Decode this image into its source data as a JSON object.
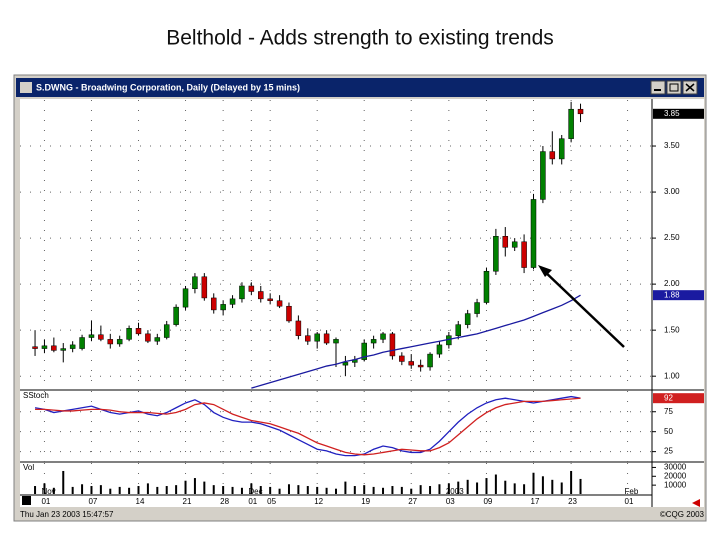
{
  "title": "Belthold - Adds strength to existing trends",
  "window_title": "S.DWNG - Broadwing Corporation, Daily (Delayed by 15 mins)",
  "status": {
    "timestamp": "Thu Jan 23 2003 15:47:57",
    "copyright": "©CQG 2003"
  },
  "chart_data": [
    {
      "type": "candlestick",
      "xlim": [
        -1.6,
        65.6
      ],
      "ylim": [
        0.85,
        4.0
      ],
      "yticks": [
        {
          "value": 1,
          "label": "1.00"
        },
        {
          "value": 1.5,
          "label": "1.50"
        },
        {
          "value": 2,
          "label": "2.00"
        },
        {
          "value": 2.5,
          "label": "2.50"
        },
        {
          "value": 3,
          "label": "3.00"
        },
        {
          "value": 3.5,
          "label": "3.50"
        }
      ],
      "xticks": [
        {
          "value": 1,
          "label": "01"
        },
        {
          "value": 6,
          "label": "07"
        },
        {
          "value": 11,
          "label": "14"
        },
        {
          "value": 16,
          "label": "21"
        },
        {
          "value": 20,
          "label": "28"
        },
        {
          "value": 23,
          "label": "01"
        },
        {
          "value": 25,
          "label": "05"
        },
        {
          "value": 30,
          "label": "12"
        },
        {
          "value": 35,
          "label": "19"
        },
        {
          "value": 40,
          "label": "27"
        },
        {
          "value": 44,
          "label": "03"
        },
        {
          "value": 48,
          "label": "09"
        },
        {
          "value": 53,
          "label": "17"
        },
        {
          "value": 57,
          "label": "23"
        },
        {
          "value": 63,
          "label": "01"
        }
      ],
      "month_ticks": [
        {
          "value": 1,
          "label": "Nov"
        },
        {
          "value": 23,
          "label": "Dec"
        },
        {
          "value": 44,
          "label": "2003"
        },
        {
          "value": 63,
          "label": "Feb"
        }
      ],
      "grid": true,
      "up_color": "#008000",
      "down_color": "#cc0000",
      "candles": [
        [
          1.32,
          1.5,
          1.22,
          1.3
        ],
        [
          1.3,
          1.4,
          1.25,
          1.33
        ],
        [
          1.33,
          1.42,
          1.26,
          1.28
        ],
        [
          1.28,
          1.36,
          1.15,
          1.3
        ],
        [
          1.3,
          1.38,
          1.26,
          1.34
        ],
        [
          1.3,
          1.45,
          1.28,
          1.42
        ],
        [
          1.42,
          1.6,
          1.38,
          1.45
        ],
        [
          1.45,
          1.55,
          1.38,
          1.4
        ],
        [
          1.4,
          1.46,
          1.3,
          1.35
        ],
        [
          1.35,
          1.44,
          1.32,
          1.4
        ],
        [
          1.4,
          1.55,
          1.38,
          1.52
        ],
        [
          1.52,
          1.58,
          1.44,
          1.46
        ],
        [
          1.46,
          1.5,
          1.36,
          1.38
        ],
        [
          1.38,
          1.46,
          1.34,
          1.42
        ],
        [
          1.42,
          1.6,
          1.4,
          1.56
        ],
        [
          1.56,
          1.78,
          1.54,
          1.75
        ],
        [
          1.75,
          1.98,
          1.72,
          1.95
        ],
        [
          1.95,
          2.12,
          1.9,
          2.08
        ],
        [
          2.08,
          2.12,
          1.82,
          1.85
        ],
        [
          1.85,
          1.9,
          1.68,
          1.72
        ],
        [
          1.72,
          1.82,
          1.66,
          1.78
        ],
        [
          1.78,
          1.88,
          1.74,
          1.84
        ],
        [
          1.84,
          2.02,
          1.8,
          1.98
        ],
        [
          1.98,
          2.02,
          1.88,
          1.92
        ],
        [
          1.92,
          1.98,
          1.8,
          1.84
        ],
        [
          1.84,
          1.9,
          1.78,
          1.82
        ],
        [
          1.82,
          1.88,
          1.74,
          1.76
        ],
        [
          1.76,
          1.8,
          1.58,
          1.6
        ],
        [
          1.6,
          1.66,
          1.4,
          1.44
        ],
        [
          1.44,
          1.52,
          1.34,
          1.38
        ],
        [
          1.38,
          1.48,
          1.3,
          1.46
        ],
        [
          1.46,
          1.5,
          1.34,
          1.36
        ],
        [
          1.36,
          1.42,
          1.1,
          1.4
        ],
        [
          1.12,
          1.22,
          1.0,
          1.15
        ],
        [
          1.15,
          1.22,
          1.1,
          1.18
        ],
        [
          1.18,
          1.4,
          1.16,
          1.36
        ],
        [
          1.36,
          1.44,
          1.3,
          1.4
        ],
        [
          1.4,
          1.48,
          1.36,
          1.46
        ],
        [
          1.46,
          1.48,
          1.18,
          1.22
        ],
        [
          1.22,
          1.26,
          1.12,
          1.16
        ],
        [
          1.16,
          1.24,
          1.08,
          1.12
        ],
        [
          1.12,
          1.18,
          1.05,
          1.1
        ],
        [
          1.1,
          1.26,
          1.06,
          1.24
        ],
        [
          1.24,
          1.38,
          1.2,
          1.34
        ],
        [
          1.34,
          1.48,
          1.3,
          1.44
        ],
        [
          1.44,
          1.6,
          1.4,
          1.56
        ],
        [
          1.56,
          1.72,
          1.52,
          1.68
        ],
        [
          1.68,
          1.84,
          1.64,
          1.8
        ],
        [
          1.8,
          2.18,
          1.78,
          2.14
        ],
        [
          2.14,
          2.6,
          2.1,
          2.52
        ],
        [
          2.52,
          2.62,
          2.3,
          2.4
        ],
        [
          2.4,
          2.5,
          2.36,
          2.46
        ],
        [
          2.46,
          2.54,
          2.12,
          2.18
        ],
        [
          2.18,
          2.98,
          2.16,
          2.92
        ],
        [
          2.92,
          3.5,
          2.88,
          3.44
        ],
        [
          3.44,
          3.66,
          3.3,
          3.36
        ],
        [
          3.36,
          3.62,
          3.3,
          3.58
        ],
        [
          3.58,
          3.98,
          3.54,
          3.9
        ],
        [
          3.9,
          3.96,
          3.76,
          3.85
        ]
      ],
      "moving_average": {
        "color": "#1a1aa0",
        "values": [
          null,
          null,
          null,
          null,
          null,
          null,
          null,
          null,
          null,
          null,
          null,
          null,
          null,
          null,
          null,
          null,
          null,
          null,
          null,
          null,
          null,
          null,
          null,
          0.87,
          0.9,
          0.93,
          0.96,
          0.99,
          1.02,
          1.05,
          1.08,
          1.11,
          1.13,
          1.16,
          1.18,
          1.21,
          1.23,
          1.26,
          1.28,
          1.3,
          1.32,
          1.34,
          1.36,
          1.38,
          1.4,
          1.42,
          1.44,
          1.46,
          1.49,
          1.52,
          1.55,
          1.58,
          1.61,
          1.65,
          1.69,
          1.73,
          1.77,
          1.82,
          1.88
        ]
      }
    },
    {
      "type": "line",
      "label": "SStoch",
      "xlim": [
        -1.6,
        65.6
      ],
      "ylim": [
        12,
        101
      ],
      "yticks": [
        25,
        50,
        75
      ],
      "grid": true,
      "series": [
        {
          "color": "#2020c0",
          "values": [
            80,
            78,
            74,
            76,
            78,
            80,
            82,
            78,
            74,
            72,
            74,
            76,
            72,
            70,
            74,
            80,
            86,
            90,
            84,
            74,
            68,
            64,
            62,
            62,
            60,
            56,
            52,
            46,
            40,
            34,
            28,
            26,
            22,
            20,
            20,
            22,
            28,
            32,
            30,
            26,
            24,
            24,
            28,
            38,
            50,
            62,
            72,
            80,
            86,
            90,
            92,
            90,
            88,
            86,
            88,
            90,
            92,
            94,
            92
          ]
        },
        {
          "color": "#d02020",
          "values": [
            78,
            78,
            77,
            76,
            76,
            77,
            78,
            78,
            77,
            75,
            74,
            74,
            74,
            73,
            72,
            74,
            78,
            84,
            86,
            84,
            78,
            72,
            68,
            64,
            62,
            60,
            56,
            52,
            48,
            42,
            36,
            32,
            28,
            24,
            22,
            21,
            22,
            24,
            26,
            28,
            27,
            26,
            26,
            30,
            36,
            46,
            56,
            66,
            74,
            80,
            84,
            86,
            88,
            88,
            88,
            89,
            90,
            91,
            92
          ]
        }
      ]
    },
    {
      "type": "bar",
      "label": "Vol",
      "xlim": [
        -1.6,
        65.6
      ],
      "ylim": [
        0,
        35000
      ],
      "yticks": [
        10000,
        20000,
        30000
      ],
      "color": "#000000",
      "values": [
        9000,
        12000,
        7000,
        26000,
        8000,
        11000,
        9000,
        10000,
        6000,
        8000,
        7000,
        9000,
        12000,
        8000,
        9000,
        10000,
        15000,
        18000,
        14000,
        10000,
        9000,
        8000,
        7000,
        12000,
        9000,
        8000,
        6000,
        11000,
        10000,
        9000,
        8000,
        7000,
        6000,
        14000,
        9000,
        10000,
        8000,
        7000,
        9000,
        8000,
        6000,
        10000,
        9000,
        11000,
        12000,
        14000,
        16000,
        13000,
        18000,
        22000,
        15000,
        12000,
        11000,
        24000,
        20000,
        16000,
        13000,
        26000,
        17000
      ]
    }
  ]
}
